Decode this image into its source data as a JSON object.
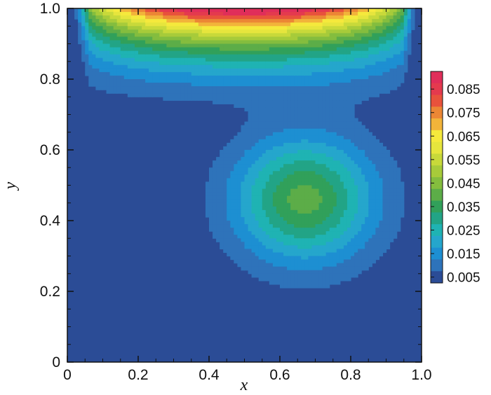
{
  "chart_data": {
    "type": "contour",
    "xlabel": "x",
    "ylabel": "y",
    "xlim": [
      0,
      1
    ],
    "ylim": [
      0,
      1
    ],
    "x_ticks": [
      "0",
      "0.2",
      "0.4",
      "0.6",
      "0.8",
      "1.0"
    ],
    "y_ticks": [
      "0",
      "0.2",
      "0.4",
      "0.6",
      "0.8",
      "1.0"
    ],
    "contour_levels": [
      {
        "level": 0.005,
        "color": "#2b4c96"
      },
      {
        "level": 0.01,
        "color": "#2e73ba"
      },
      {
        "level": 0.015,
        "color": "#1d8fd2"
      },
      {
        "level": 0.02,
        "color": "#25a6cc"
      },
      {
        "level": 0.025,
        "color": "#1fb3b3"
      },
      {
        "level": 0.03,
        "color": "#22a486"
      },
      {
        "level": 0.035,
        "color": "#31a05a"
      },
      {
        "level": 0.04,
        "color": "#5cad48"
      },
      {
        "level": 0.045,
        "color": "#84bd3e"
      },
      {
        "level": 0.05,
        "color": "#a7cb3a"
      },
      {
        "level": 0.055,
        "color": "#c8d93a"
      },
      {
        "level": 0.06,
        "color": "#e6e53d"
      },
      {
        "level": 0.065,
        "color": "#f5e93c"
      },
      {
        "level": 0.07,
        "color": "#f2b43a"
      },
      {
        "level": 0.075,
        "color": "#ec8735"
      },
      {
        "level": 0.08,
        "color": "#e8523c"
      },
      {
        "level": 0.085,
        "color": "#e43a4e"
      },
      {
        "level": 0.09,
        "color": "#e02e5a"
      }
    ],
    "legend": {
      "placement": "right",
      "labels": [
        "0.085",
        "0.075",
        "0.065",
        "0.055",
        "0.045",
        "0.035",
        "0.025",
        "0.015",
        "0.005"
      ]
    },
    "vortex_center": [
      0.67,
      0.46
    ]
  }
}
